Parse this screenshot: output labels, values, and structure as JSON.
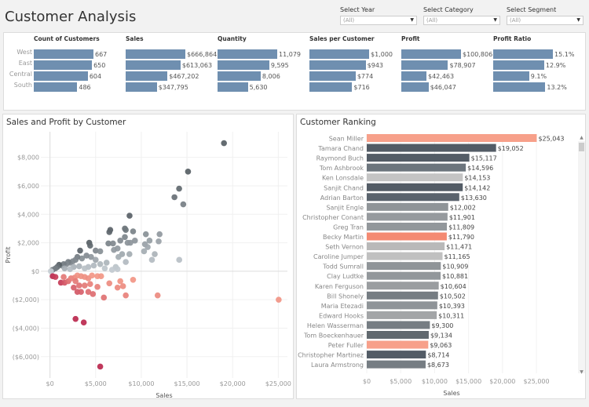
{
  "header": {
    "title": "Customer Analysis"
  },
  "filters": [
    {
      "label": "Select Year",
      "value": "(All)"
    },
    {
      "label": "Select Category",
      "value": "(All)"
    },
    {
      "label": "Select Segment",
      "value": "(All)"
    }
  ],
  "kpis": {
    "regions": [
      "West",
      "East",
      "Central",
      "South"
    ],
    "columns": [
      {
        "header": "Count of Customers",
        "values": [
          667,
          650,
          604,
          486
        ],
        "labels": [
          "667",
          "650",
          "604",
          "486"
        ]
      },
      {
        "header": "Sales",
        "values": [
          666864,
          613063,
          467202,
          347795
        ],
        "labels": [
          "$666,864",
          "$613,063",
          "$467,202",
          "$347,795"
        ]
      },
      {
        "header": "Quantity",
        "values": [
          11079,
          9595,
          8006,
          5630
        ],
        "labels": [
          "11,079",
          "9,595",
          "8,006",
          "5,630"
        ]
      },
      {
        "header": "Sales per Customer",
        "values": [
          1000,
          943,
          774,
          716
        ],
        "labels": [
          "$1,000",
          "$943",
          "$774",
          "$716"
        ]
      },
      {
        "header": "Profit",
        "values": [
          100806,
          78907,
          42463,
          46047
        ],
        "labels": [
          "$100,806",
          "$78,907",
          "$42,463",
          "$46,047"
        ]
      },
      {
        "header": "Profit Ratio",
        "values": [
          15.1,
          12.9,
          9.1,
          13.2
        ],
        "labels": [
          "15.1%",
          "12.9%",
          "9.1%",
          "13.2%"
        ]
      }
    ],
    "bar_color": "#6f8fb0"
  },
  "chart_data": [
    {
      "type": "scatter",
      "title": "Sales and Profit by Customer",
      "xlabel": "Sales",
      "ylabel": "Profit",
      "xlim": [
        -1000,
        26000
      ],
      "ylim": [
        -7500,
        9800
      ],
      "xticks": [
        0,
        5000,
        10000,
        15000,
        20000,
        25000
      ],
      "xtick_labels": [
        "$0",
        "$5,000",
        "$10,000",
        "$15,000",
        "$20,000",
        "$25,000"
      ],
      "yticks": [
        8000,
        6000,
        4000,
        2000,
        0,
        -2000,
        -4000,
        -6000
      ],
      "ytick_labels": [
        "$8,000",
        "$6,000",
        "$4,000",
        "$2,000",
        "$0",
        "($2,000)",
        "($4,000)",
        "($6,000)"
      ],
      "color_encoding": "profit ratio (dark grey high, light grey neutral, red negative)",
      "points": [
        [
          19052,
          9000
        ],
        [
          15117,
          7000
        ],
        [
          14142,
          5800
        ],
        [
          13630,
          5200
        ],
        [
          14596,
          4700
        ],
        [
          8714,
          3900
        ],
        [
          6600,
          2900
        ],
        [
          6500,
          2750
        ],
        [
          8200,
          3000
        ],
        [
          8300,
          2900
        ],
        [
          9100,
          2800
        ],
        [
          10500,
          2600
        ],
        [
          12002,
          2600
        ],
        [
          8200,
          2400
        ],
        [
          7700,
          2150
        ],
        [
          9300,
          2150
        ],
        [
          10900,
          2150
        ],
        [
          11901,
          2100
        ],
        [
          8500,
          2000
        ],
        [
          8800,
          2000
        ],
        [
          10400,
          1900
        ],
        [
          6400,
          1950
        ],
        [
          6900,
          1950
        ],
        [
          4300,
          2000
        ],
        [
          4400,
          1800
        ],
        [
          10700,
          1700
        ],
        [
          7400,
          1600
        ],
        [
          7000,
          1500
        ],
        [
          3300,
          1450
        ],
        [
          5000,
          1450
        ],
        [
          5500,
          1400
        ],
        [
          10300,
          1400
        ],
        [
          11471,
          1200
        ],
        [
          8700,
          1200
        ],
        [
          7900,
          1200
        ],
        [
          7500,
          1000
        ],
        [
          11165,
          800
        ],
        [
          14153,
          800
        ],
        [
          8300,
          650
        ],
        [
          6200,
          600
        ],
        [
          7200,
          300
        ],
        [
          7400,
          150
        ],
        [
          6000,
          200
        ],
        [
          6800,
          100
        ],
        [
          5500,
          500
        ],
        [
          5000,
          800
        ],
        [
          4500,
          1000
        ],
        [
          4000,
          1100
        ],
        [
          3500,
          900
        ],
        [
          3000,
          1000
        ],
        [
          2800,
          800
        ],
        [
          2500,
          700
        ],
        [
          2200,
          600
        ],
        [
          2000,
          650
        ],
        [
          1800,
          500
        ],
        [
          1500,
          500
        ],
        [
          1300,
          400
        ],
        [
          1000,
          450
        ],
        [
          800,
          300
        ],
        [
          600,
          200
        ],
        [
          300,
          100
        ],
        [
          100,
          0
        ],
        [
          4800,
          400
        ],
        [
          4200,
          300
        ],
        [
          3800,
          200
        ],
        [
          3200,
          350
        ],
        [
          2600,
          300
        ],
        [
          2200,
          150
        ],
        [
          1600,
          200
        ],
        [
          300,
          -350
        ],
        [
          600,
          -400
        ],
        [
          1200,
          -800
        ],
        [
          1600,
          -800
        ],
        [
          2000,
          -700
        ],
        [
          1500,
          -400
        ],
        [
          2300,
          -500
        ],
        [
          2700,
          -450
        ],
        [
          3000,
          -300
        ],
        [
          3400,
          -350
        ],
        [
          3800,
          -400
        ],
        [
          4200,
          -500
        ],
        [
          4600,
          -300
        ],
        [
          5200,
          -350
        ],
        [
          5600,
          -350
        ],
        [
          2800,
          -700
        ],
        [
          3200,
          -1000
        ],
        [
          3800,
          -1000
        ],
        [
          4400,
          -900
        ],
        [
          2600,
          -1150
        ],
        [
          3000,
          -1450
        ],
        [
          3400,
          -1450
        ],
        [
          4200,
          -1450
        ],
        [
          4700,
          -1600
        ],
        [
          5200,
          -1100
        ],
        [
          5900,
          -1850
        ],
        [
          6500,
          -850
        ],
        [
          7400,
          -1150
        ],
        [
          7700,
          -700
        ],
        [
          8000,
          -1050
        ],
        [
          9100,
          -600
        ],
        [
          8300,
          -1700
        ],
        [
          11790,
          -1700
        ],
        [
          25043,
          -2000
        ],
        [
          2800,
          -3350
        ],
        [
          3700,
          -3600
        ],
        [
          5500,
          -6700
        ]
      ]
    },
    {
      "type": "bar",
      "orientation": "horizontal",
      "title": "Customer Ranking",
      "xlabel": "Sales",
      "xlim": [
        0,
        28000
      ],
      "xticks": [
        0,
        5000,
        10000,
        15000,
        20000,
        25000
      ],
      "xtick_labels": [
        "$0",
        "$5,000",
        "$10,000",
        "$15,000",
        "$20,000",
        "$25,000"
      ],
      "categories": [
        "Sean Miller",
        "Tamara Chand",
        "Raymond Buch",
        "Tom Ashbrook",
        "Ken Lonsdale",
        "Sanjit Chand",
        "Adrian Barton",
        "Sanjit Engle",
        "Christopher Conant",
        "Greg Tran",
        "Becky Martin",
        "Seth Vernon",
        "Caroline Jumper",
        "Todd Sumrall",
        "Clay Ludtke",
        "Karen Ferguson",
        "Bill Shonely",
        "Maria Etezadi",
        "Edward Hooks",
        "Helen Wasserman",
        "Tom Boeckenhauer",
        "Peter Fuller",
        "Christopher Martinez",
        "Laura Armstrong"
      ],
      "values": [
        25043,
        19052,
        15117,
        14596,
        14153,
        14142,
        13630,
        12002,
        11901,
        11809,
        11790,
        11471,
        11165,
        10909,
        10881,
        10604,
        10502,
        10393,
        10311,
        9300,
        9134,
        9063,
        8714,
        8673
      ],
      "labels": [
        "$25,043",
        "$19,052",
        "$15,117",
        "$14,596",
        "$14,153",
        "$14,142",
        "$13,630",
        "$12,002",
        "$11,901",
        "$11,809",
        "$11,790",
        "$11,471",
        "$11,165",
        "$10,909",
        "$10,881",
        "$10,604",
        "$10,502",
        "$10,393",
        "$10,311",
        "$9,300",
        "$9,134",
        "$9,063",
        "$8,714",
        "$8,673"
      ],
      "colors": [
        "#f7a08a",
        "#535c66",
        "#535c66",
        "#6c757d",
        "#c4c4c4",
        "#535c66",
        "#5a636d",
        "#8f9498",
        "#969a9e",
        "#92979b",
        "#f48a72",
        "#b9b9b9",
        "#c0c0c0",
        "#8f9498",
        "#92979b",
        "#9a9da0",
        "#767d83",
        "#8f9498",
        "#a3a5a7",
        "#767d83",
        "#61696f",
        "#f7a08a",
        "#535c66",
        "#767d83"
      ]
    }
  ]
}
